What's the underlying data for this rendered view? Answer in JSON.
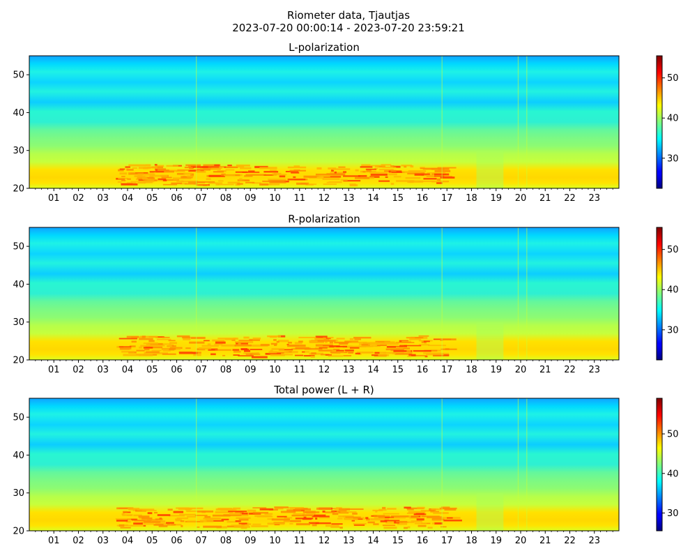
{
  "figure": {
    "title_line1": "Riometer data, Tjautjas",
    "title_line2": "2023-07-20 00:00:14 - 2023-07-20 23:59:21"
  },
  "chart_data": [
    {
      "type": "heatmap",
      "title": "L-polarization",
      "xlabel": "",
      "ylabel": "",
      "x_tick_labels": [
        "01",
        "02",
        "03",
        "04",
        "05",
        "06",
        "07",
        "08",
        "09",
        "10",
        "11",
        "12",
        "13",
        "14",
        "15",
        "16",
        "17",
        "18",
        "19",
        "20",
        "21",
        "22",
        "23"
      ],
      "x_range_hours": [
        0,
        24
      ],
      "y_range": [
        20,
        55
      ],
      "y_ticks": [
        20,
        30,
        40,
        50
      ],
      "colormap": "jet",
      "colorbar_range": [
        22.5,
        55.5
      ],
      "colorbar_ticks": [
        30,
        40,
        50
      ]
    },
    {
      "type": "heatmap",
      "title": "R-polarization",
      "xlabel": "",
      "ylabel": "",
      "x_tick_labels": [
        "01",
        "02",
        "03",
        "04",
        "05",
        "06",
        "07",
        "08",
        "09",
        "10",
        "11",
        "12",
        "13",
        "14",
        "15",
        "16",
        "17",
        "18",
        "19",
        "20",
        "21",
        "22",
        "23"
      ],
      "x_range_hours": [
        0,
        24
      ],
      "y_range": [
        20,
        55
      ],
      "y_ticks": [
        20,
        30,
        40,
        50
      ],
      "colormap": "jet",
      "colorbar_range": [
        22.5,
        55.5
      ],
      "colorbar_ticks": [
        30,
        40,
        50
      ]
    },
    {
      "type": "heatmap",
      "title": "Total power (L + R)",
      "xlabel": "",
      "ylabel": "",
      "x_tick_labels": [
        "01",
        "02",
        "03",
        "04",
        "05",
        "06",
        "07",
        "08",
        "09",
        "10",
        "11",
        "12",
        "13",
        "14",
        "15",
        "16",
        "17",
        "18",
        "19",
        "20",
        "21",
        "22",
        "23"
      ],
      "x_range_hours": [
        0,
        24
      ],
      "y_range": [
        20,
        55
      ],
      "y_ticks": [
        20,
        30,
        40,
        50
      ],
      "colormap": "jet",
      "colorbar_range": [
        25.5,
        59
      ],
      "colorbar_ticks": [
        30,
        40,
        50
      ]
    }
  ]
}
